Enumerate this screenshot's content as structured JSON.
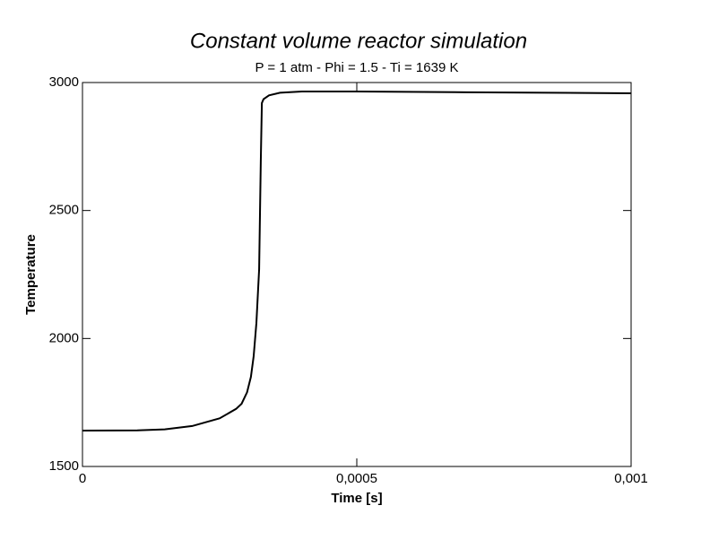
{
  "chart_data": {
    "type": "line",
    "title": "Constant volume reactor simulation",
    "subtitle": "P = 1 atm - Phi = 1.5 - Ti = 1639 K",
    "x_label": "Time [s]",
    "y_label": "Temperature",
    "x": [
      0,
      0.0001,
      0.00015,
      0.0002,
      0.00025,
      0.00028,
      0.00029,
      0.0003,
      0.000307,
      0.000312,
      0.000317,
      0.000322,
      0.000325,
      0.000327,
      0.00033,
      0.00034,
      0.00036,
      0.0004,
      0.0005,
      0.0007,
      0.001
    ],
    "values": [
      1640,
      1641,
      1645,
      1658,
      1688,
      1725,
      1745,
      1790,
      1850,
      1930,
      2060,
      2270,
      2690,
      2920,
      2935,
      2950,
      2960,
      2965,
      2965,
      2962,
      2958
    ],
    "color": "#000000",
    "xlim": [
      0,
      0.001
    ],
    "xticks": [
      0,
      {
        "value": 0.0005,
        "label": "0,0005"
      },
      {
        "value": 0.001,
        "label": "0,001"
      }
    ],
    "ylim": [
      1500,
      3000
    ],
    "yticks": [
      1500,
      2000,
      2500,
      3000
    ],
    "grid": false
  }
}
